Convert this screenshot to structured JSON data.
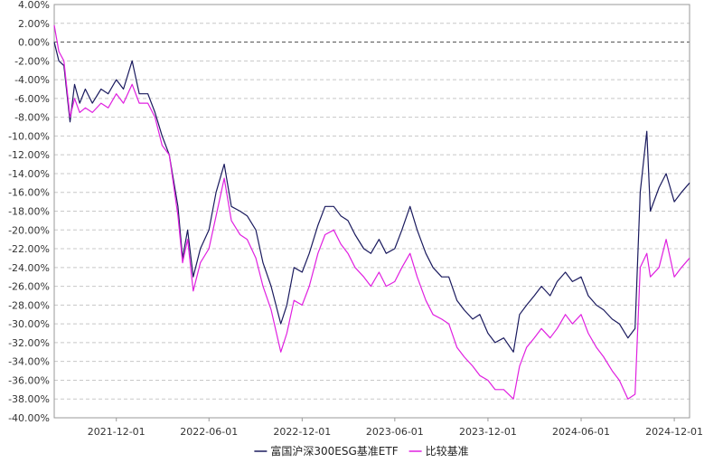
{
  "chart_data": {
    "type": "line",
    "ylim": [
      -40,
      4
    ],
    "y_ticks": [
      4,
      2,
      0,
      -2,
      -4,
      -6,
      -8,
      -10,
      -12,
      -14,
      -16,
      -18,
      -20,
      -22,
      -24,
      -26,
      -28,
      -30,
      -32,
      -34,
      -36,
      -38,
      -40
    ],
    "y_tick_labels": [
      "4.00%",
      "2.00%",
      "0.00%",
      "-2.00%",
      "-4.00%",
      "-6.00%",
      "-8.00%",
      "-10.00%",
      "-12.00%",
      "-14.00%",
      "-16.00%",
      "-18.00%",
      "-20.00%",
      "-22.00%",
      "-24.00%",
      "-26.00%",
      "-28.00%",
      "-30.00%",
      "-32.00%",
      "-34.00%",
      "-36.00%",
      "-38.00%",
      "-40.00%"
    ],
    "xlim": [
      "2021-08-01",
      "2024-12-31"
    ],
    "x_ticks": [
      "2021-12-01",
      "2022-06-01",
      "2022-12-01",
      "2023-06-01",
      "2023-12-01",
      "2024-06-01",
      "2024-12-01"
    ],
    "grid": true,
    "legend_position": "bottom-center",
    "series": [
      {
        "name": "富国沪深300ESG基准ETF",
        "color": "#1a1a5e",
        "points": [
          [
            "2021-08-01",
            0.0
          ],
          [
            "2021-08-10",
            -2.0
          ],
          [
            "2021-08-20",
            -2.5
          ],
          [
            "2021-09-01",
            -8.5
          ],
          [
            "2021-09-10",
            -4.5
          ],
          [
            "2021-09-20",
            -6.5
          ],
          [
            "2021-10-01",
            -5.0
          ],
          [
            "2021-10-15",
            -6.5
          ],
          [
            "2021-11-01",
            -5.0
          ],
          [
            "2021-11-15",
            -5.5
          ],
          [
            "2021-12-01",
            -4.0
          ],
          [
            "2021-12-15",
            -5.0
          ],
          [
            "2022-01-01",
            -2.0
          ],
          [
            "2022-01-15",
            -5.5
          ],
          [
            "2022-02-01",
            -5.5
          ],
          [
            "2022-02-15",
            -7.5
          ],
          [
            "2022-03-01",
            -10.0
          ],
          [
            "2022-03-15",
            -12.0
          ],
          [
            "2022-04-01",
            -17.5
          ],
          [
            "2022-04-10",
            -23.0
          ],
          [
            "2022-04-20",
            -20.0
          ],
          [
            "2022-05-01",
            -25.0
          ],
          [
            "2022-05-15",
            -22.0
          ],
          [
            "2022-06-01",
            -20.0
          ],
          [
            "2022-06-15",
            -16.0
          ],
          [
            "2022-07-01",
            -13.0
          ],
          [
            "2022-07-15",
            -17.5
          ],
          [
            "2022-08-01",
            -18.0
          ],
          [
            "2022-08-15",
            -18.5
          ],
          [
            "2022-09-01",
            -20.0
          ],
          [
            "2022-09-15",
            -23.5
          ],
          [
            "2022-10-01",
            -26.0
          ],
          [
            "2022-10-20",
            -30.0
          ],
          [
            "2022-11-01",
            -28.0
          ],
          [
            "2022-11-15",
            -24.0
          ],
          [
            "2022-12-01",
            -24.5
          ],
          [
            "2022-12-15",
            -22.5
          ],
          [
            "2023-01-01",
            -19.5
          ],
          [
            "2023-01-15",
            -17.5
          ],
          [
            "2023-02-01",
            -17.5
          ],
          [
            "2023-02-15",
            -18.5
          ],
          [
            "2023-03-01",
            -19.0
          ],
          [
            "2023-03-15",
            -20.5
          ],
          [
            "2023-04-01",
            -22.0
          ],
          [
            "2023-04-15",
            -22.5
          ],
          [
            "2023-05-01",
            -21.0
          ],
          [
            "2023-05-15",
            -22.5
          ],
          [
            "2023-06-01",
            -22.0
          ],
          [
            "2023-06-15",
            -20.0
          ],
          [
            "2023-07-01",
            -17.5
          ],
          [
            "2023-07-15",
            -20.0
          ],
          [
            "2023-08-01",
            -22.5
          ],
          [
            "2023-08-15",
            -24.0
          ],
          [
            "2023-09-01",
            -25.0
          ],
          [
            "2023-09-15",
            -25.0
          ],
          [
            "2023-10-01",
            -27.5
          ],
          [
            "2023-10-15",
            -28.5
          ],
          [
            "2023-11-01",
            -29.5
          ],
          [
            "2023-11-15",
            -29.0
          ],
          [
            "2023-12-01",
            -31.0
          ],
          [
            "2023-12-15",
            -32.0
          ],
          [
            "2024-01-01",
            -31.5
          ],
          [
            "2024-01-20",
            -33.0
          ],
          [
            "2024-02-01",
            -29.0
          ],
          [
            "2024-02-15",
            -28.0
          ],
          [
            "2024-03-01",
            -27.0
          ],
          [
            "2024-03-15",
            -26.0
          ],
          [
            "2024-04-01",
            -27.0
          ],
          [
            "2024-04-15",
            -25.5
          ],
          [
            "2024-05-01",
            -24.5
          ],
          [
            "2024-05-15",
            -25.5
          ],
          [
            "2024-06-01",
            -25.0
          ],
          [
            "2024-06-15",
            -27.0
          ],
          [
            "2024-07-01",
            -28.0
          ],
          [
            "2024-07-15",
            -28.5
          ],
          [
            "2024-08-01",
            -29.5
          ],
          [
            "2024-08-15",
            -30.0
          ],
          [
            "2024-09-01",
            -31.5
          ],
          [
            "2024-09-15",
            -30.5
          ],
          [
            "2024-09-25",
            -16.0
          ],
          [
            "2024-10-08",
            -9.5
          ],
          [
            "2024-10-15",
            -18.0
          ],
          [
            "2024-11-01",
            -15.5
          ],
          [
            "2024-11-15",
            -14.0
          ],
          [
            "2024-12-01",
            -17.0
          ],
          [
            "2024-12-15",
            -16.0
          ],
          [
            "2024-12-31",
            -15.0
          ]
        ]
      },
      {
        "name": "比较基准",
        "color": "#e020e0",
        "points": [
          [
            "2021-08-01",
            1.8
          ],
          [
            "2021-08-10",
            -1.0
          ],
          [
            "2021-08-20",
            -2.0
          ],
          [
            "2021-09-01",
            -8.0
          ],
          [
            "2021-09-10",
            -6.0
          ],
          [
            "2021-09-20",
            -7.5
          ],
          [
            "2021-10-01",
            -7.0
          ],
          [
            "2021-10-15",
            -7.5
          ],
          [
            "2021-11-01",
            -6.5
          ],
          [
            "2021-11-15",
            -7.0
          ],
          [
            "2021-12-01",
            -5.5
          ],
          [
            "2021-12-15",
            -6.5
          ],
          [
            "2022-01-01",
            -4.5
          ],
          [
            "2022-01-15",
            -6.5
          ],
          [
            "2022-02-01",
            -6.5
          ],
          [
            "2022-02-15",
            -8.0
          ],
          [
            "2022-03-01",
            -11.0
          ],
          [
            "2022-03-15",
            -12.0
          ],
          [
            "2022-04-01",
            -18.5
          ],
          [
            "2022-04-10",
            -23.5
          ],
          [
            "2022-04-20",
            -21.0
          ],
          [
            "2022-05-01",
            -26.5
          ],
          [
            "2022-05-15",
            -23.5
          ],
          [
            "2022-06-01",
            -22.0
          ],
          [
            "2022-06-15",
            -18.5
          ],
          [
            "2022-07-01",
            -14.5
          ],
          [
            "2022-07-15",
            -19.0
          ],
          [
            "2022-08-01",
            -20.5
          ],
          [
            "2022-08-15",
            -21.0
          ],
          [
            "2022-09-01",
            -23.0
          ],
          [
            "2022-09-15",
            -26.0
          ],
          [
            "2022-10-01",
            -28.5
          ],
          [
            "2022-10-20",
            -33.0
          ],
          [
            "2022-11-01",
            -31.0
          ],
          [
            "2022-11-15",
            -27.5
          ],
          [
            "2022-12-01",
            -28.0
          ],
          [
            "2022-12-15",
            -26.0
          ],
          [
            "2023-01-01",
            -22.5
          ],
          [
            "2023-01-15",
            -20.5
          ],
          [
            "2023-02-01",
            -20.0
          ],
          [
            "2023-02-15",
            -21.5
          ],
          [
            "2023-03-01",
            -22.5
          ],
          [
            "2023-03-15",
            -24.0
          ],
          [
            "2023-04-01",
            -25.0
          ],
          [
            "2023-04-15",
            -26.0
          ],
          [
            "2023-05-01",
            -24.5
          ],
          [
            "2023-05-15",
            -26.0
          ],
          [
            "2023-06-01",
            -25.5
          ],
          [
            "2023-06-15",
            -24.0
          ],
          [
            "2023-07-01",
            -22.5
          ],
          [
            "2023-07-15",
            -25.0
          ],
          [
            "2023-08-01",
            -27.5
          ],
          [
            "2023-08-15",
            -29.0
          ],
          [
            "2023-09-01",
            -29.5
          ],
          [
            "2023-09-15",
            -30.0
          ],
          [
            "2023-10-01",
            -32.5
          ],
          [
            "2023-10-15",
            -33.5
          ],
          [
            "2023-11-01",
            -34.5
          ],
          [
            "2023-11-15",
            -35.5
          ],
          [
            "2023-12-01",
            -36.0
          ],
          [
            "2023-12-15",
            -37.0
          ],
          [
            "2024-01-01",
            -37.0
          ],
          [
            "2024-01-20",
            -38.0
          ],
          [
            "2024-02-01",
            -34.5
          ],
          [
            "2024-02-15",
            -32.5
          ],
          [
            "2024-03-01",
            -31.5
          ],
          [
            "2024-03-15",
            -30.5
          ],
          [
            "2024-04-01",
            -31.5
          ],
          [
            "2024-04-15",
            -30.5
          ],
          [
            "2024-05-01",
            -29.0
          ],
          [
            "2024-05-15",
            -30.0
          ],
          [
            "2024-06-01",
            -29.0
          ],
          [
            "2024-06-15",
            -31.0
          ],
          [
            "2024-07-01",
            -32.5
          ],
          [
            "2024-07-15",
            -33.5
          ],
          [
            "2024-08-01",
            -35.0
          ],
          [
            "2024-08-15",
            -36.0
          ],
          [
            "2024-09-01",
            -38.0
          ],
          [
            "2024-09-15",
            -37.5
          ],
          [
            "2024-09-25",
            -24.0
          ],
          [
            "2024-10-08",
            -22.5
          ],
          [
            "2024-10-15",
            -25.0
          ],
          [
            "2024-11-01",
            -24.0
          ],
          [
            "2024-11-15",
            -21.0
          ],
          [
            "2024-12-01",
            -25.0
          ],
          [
            "2024-12-15",
            -24.0
          ],
          [
            "2024-12-31",
            -23.0
          ]
        ]
      }
    ]
  }
}
